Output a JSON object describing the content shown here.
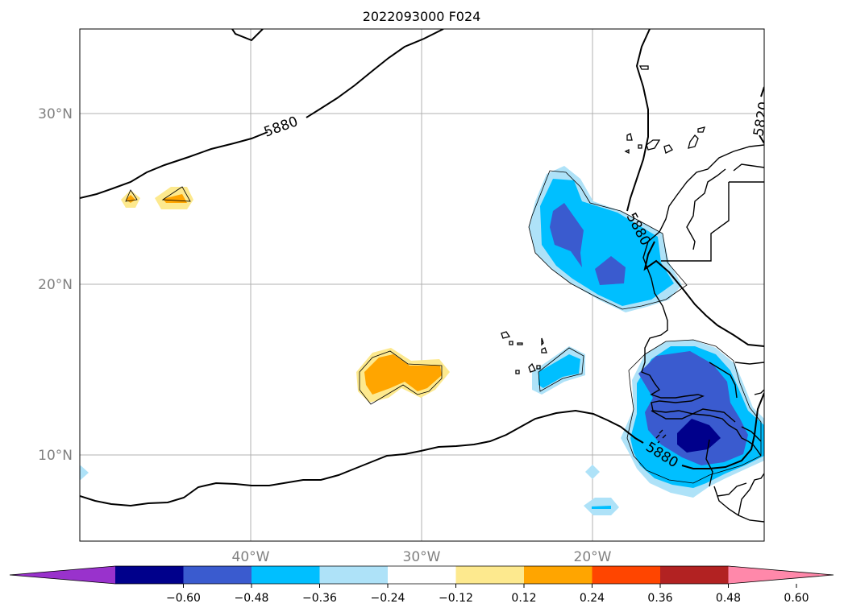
{
  "title": "2022093000 F024",
  "lat_labels": [
    "30°N",
    "20°N",
    "10°N"
  ],
  "lon_labels": [
    "40°W",
    "30°W",
    "20°W"
  ],
  "contour_labels": [
    "5880",
    "5880",
    "5880",
    "5820"
  ],
  "colorbar": {
    "tick_labels": [
      "−0.60",
      "−0.48",
      "−0.36",
      "−0.24",
      "−0.12",
      "0.12",
      "0.24",
      "0.36",
      "0.48",
      "0.60"
    ],
    "colors": [
      "#9932cc",
      "#00008b",
      "#3a5bcf",
      "#00bfff",
      "#aee2f8",
      "#ffffff",
      "#fde98e",
      "#ffa500",
      "#ff4500",
      "#b22222",
      "#ff88aa"
    ]
  },
  "colors": {
    "land_outline": "#000000",
    "grid": "#b0b0b0",
    "contour": "#000000"
  }
}
